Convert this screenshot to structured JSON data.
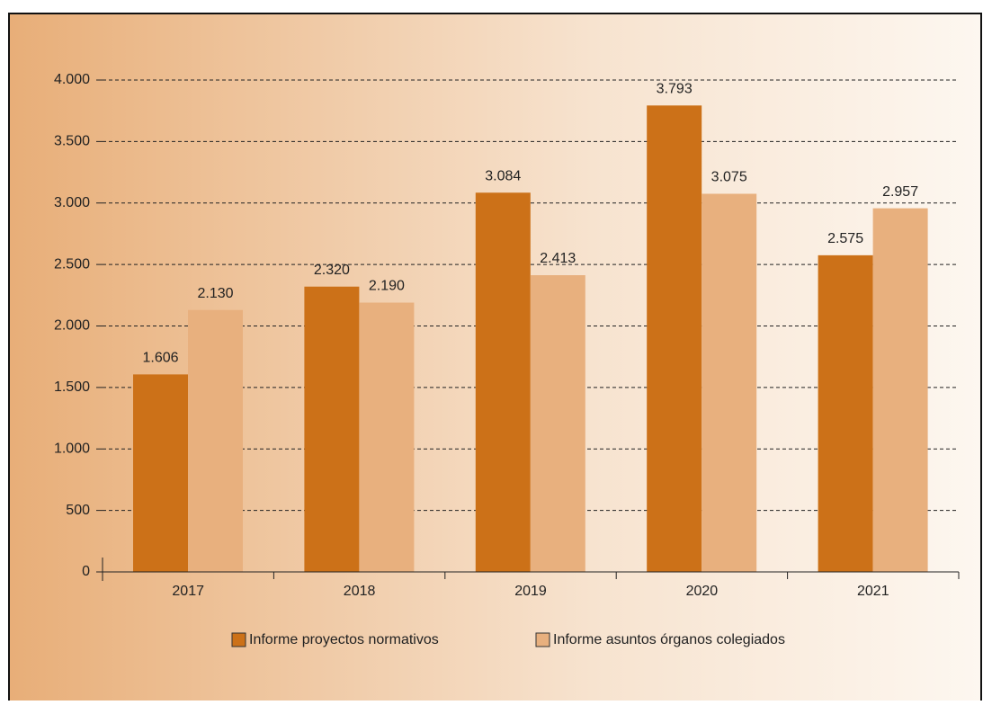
{
  "chart_data": {
    "type": "bar",
    "categories": [
      "2017",
      "2018",
      "2019",
      "2020",
      "2021"
    ],
    "series": [
      {
        "name": "Informe proyectos normativos",
        "color": "#cc7118",
        "values": [
          1606,
          2320,
          3084,
          3793,
          2575
        ],
        "value_labels": [
          "1.606",
          "2.320",
          "3.084",
          "3.793",
          "2.575"
        ]
      },
      {
        "name": "Informe asuntos órganos colegiados",
        "color": "#e8b07e",
        "values": [
          2130,
          2190,
          2413,
          3075,
          2957
        ],
        "value_labels": [
          "2.130",
          "2.190",
          "2.413",
          "3.075",
          "2.957"
        ]
      }
    ],
    "ylim": [
      0,
      4000
    ],
    "yticks": [
      0,
      500,
      {
        "value": 1000,
        "label": "1.000"
      },
      {
        "value": 1500,
        "label": "1.500"
      },
      {
        "value": 2000,
        "label": "2.000"
      },
      {
        "value": 2500,
        "label": "2.500"
      },
      {
        "value": 3000,
        "label": "3.000"
      },
      {
        "value": 3500,
        "label": "3.500"
      },
      {
        "value": 4000,
        "label": "4.000"
      }
    ],
    "grid": true,
    "legend": "bottom"
  }
}
